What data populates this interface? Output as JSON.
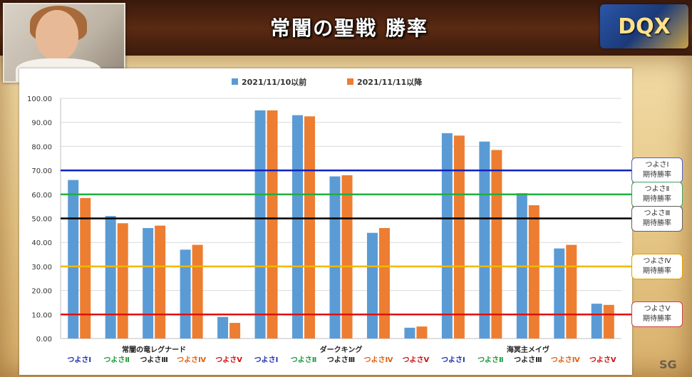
{
  "title": "常闇の聖戦 勝率",
  "chart_data": {
    "type": "bar",
    "series": [
      {
        "name": "2021/11/10以前",
        "color": "#5b9bd5",
        "values": [
          66.0,
          51.0,
          46.0,
          37.0,
          9.0,
          95.0,
          93.0,
          67.5,
          44.0,
          4.5,
          85.5,
          82.0,
          60.5,
          37.5,
          14.5
        ]
      },
      {
        "name": "2021/11/11以降",
        "color": "#ed7d31",
        "values": [
          58.5,
          48.0,
          47.0,
          39.0,
          6.5,
          95.0,
          92.5,
          68.0,
          46.0,
          5.0,
          84.5,
          78.5,
          55.5,
          39.0,
          14.0
        ]
      }
    ],
    "categories": [
      "つよさⅠ",
      "つよさⅡ",
      "つよさⅢ",
      "つよさⅣ",
      "つよさⅤ",
      "つよさⅠ",
      "つよさⅡ",
      "つよさⅢ",
      "つよさⅣ",
      "つよさⅤ",
      "つよさⅠ",
      "つよさⅡ",
      "つよさⅢ",
      "つよさⅣ",
      "つよさⅤ"
    ],
    "category_colors": [
      "#1f2fb0",
      "#1a9a3a",
      "#222222",
      "#e06010",
      "#d01010",
      "#1f2fb0",
      "#1a9a3a",
      "#222222",
      "#e06010",
      "#d01010",
      "#1f2fb0",
      "#1a9a3a",
      "#222222",
      "#e06010",
      "#d01010"
    ],
    "groups": [
      {
        "label": "常闇の竜レグナード"
      },
      {
        "label": "ダークキング"
      },
      {
        "label": "海冥主メイヴ"
      }
    ],
    "ylim": [
      0,
      100
    ],
    "yticks": [
      "0.00",
      "10.00",
      "20.00",
      "30.00",
      "40.00",
      "50.00",
      "60.00",
      "70.00",
      "80.00",
      "90.00",
      "100.00"
    ],
    "grid": true,
    "legend_placement": "top",
    "reference_lines": [
      {
        "value": 70,
        "color": "#1020c0",
        "label1": "つよさⅠ",
        "label2": "期待勝率",
        "label_border": "#5060c0"
      },
      {
        "value": 60,
        "color": "#20b040",
        "label1": "つよさⅡ",
        "label2": "期待勝率",
        "label_border": "#40a060"
      },
      {
        "value": 50,
        "color": "#000000",
        "label1": "つよさⅢ",
        "label2": "期待勝率",
        "label_border": "#606060"
      },
      {
        "value": 30,
        "color": "#f0b800",
        "label1": "つよさⅣ",
        "label2": "期待勝率",
        "label_border": "#e0a000"
      },
      {
        "value": 10,
        "color": "#e01010",
        "label1": "つよさⅤ",
        "label2": "期待勝率",
        "label_border": "#d04040"
      }
    ]
  },
  "watermark": "SG",
  "logo_text": "DQX"
}
